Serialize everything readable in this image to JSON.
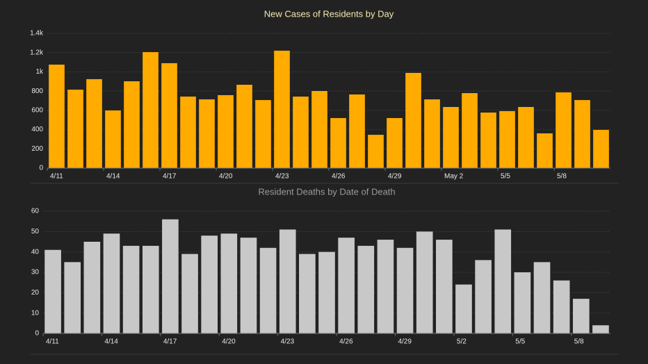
{
  "chart_data": [
    {
      "type": "bar",
      "title": "New Cases of Residents by Day",
      "title_color": "#f3e7b0",
      "color": "#ffab00",
      "categories": [
        "4/11",
        null,
        null,
        "4/14",
        null,
        null,
        "4/17",
        null,
        null,
        "4/20",
        null,
        null,
        "4/23",
        null,
        null,
        "4/26",
        null,
        null,
        "4/29",
        null,
        null,
        "May 2",
        null,
        null,
        "5/5",
        null,
        null,
        "5/8",
        null,
        null
      ],
      "values": [
        1075,
        815,
        924,
        599,
        902,
        1205,
        1090,
        743,
        714,
        758,
        866,
        707,
        1220,
        743,
        801,
        520,
        765,
        346,
        520,
        989,
        714,
        635,
        779,
        577,
        592,
        635,
        361,
        787,
        707,
        397
      ],
      "ylim": [
        0,
        1400
      ],
      "yticks": [
        0,
        200,
        400,
        600,
        800,
        1000,
        {
          "value": 1000,
          "label": "1k"
        },
        {
          "value": 1200,
          "label": "1.2k"
        },
        {
          "value": 1400,
          "label": "1.4k"
        }
      ],
      "grid": true
    },
    {
      "type": "bar",
      "title": "Resident Deaths by Date of Death",
      "title_color": "#9a9a9a",
      "color": "#c8c8c8",
      "categories": [
        "4/11",
        null,
        null,
        "4/14",
        null,
        null,
        "4/17",
        null,
        null,
        "4/20",
        null,
        null,
        "4/23",
        null,
        null,
        "4/26",
        null,
        null,
        "4/29",
        null,
        null,
        "5/2",
        null,
        null,
        "5/5",
        null,
        null,
        "5/8",
        null
      ],
      "values": [
        41,
        35,
        45,
        49,
        43,
        43,
        56,
        39,
        48,
        49,
        47,
        42,
        51,
        39,
        40,
        47,
        43,
        46,
        42,
        50,
        46,
        24,
        36,
        51,
        30,
        35,
        26,
        17,
        4
      ],
      "ylim": [
        0,
        60
      ],
      "yticks": [
        0,
        10,
        20,
        30,
        40,
        50,
        60
      ],
      "grid": true
    }
  ]
}
